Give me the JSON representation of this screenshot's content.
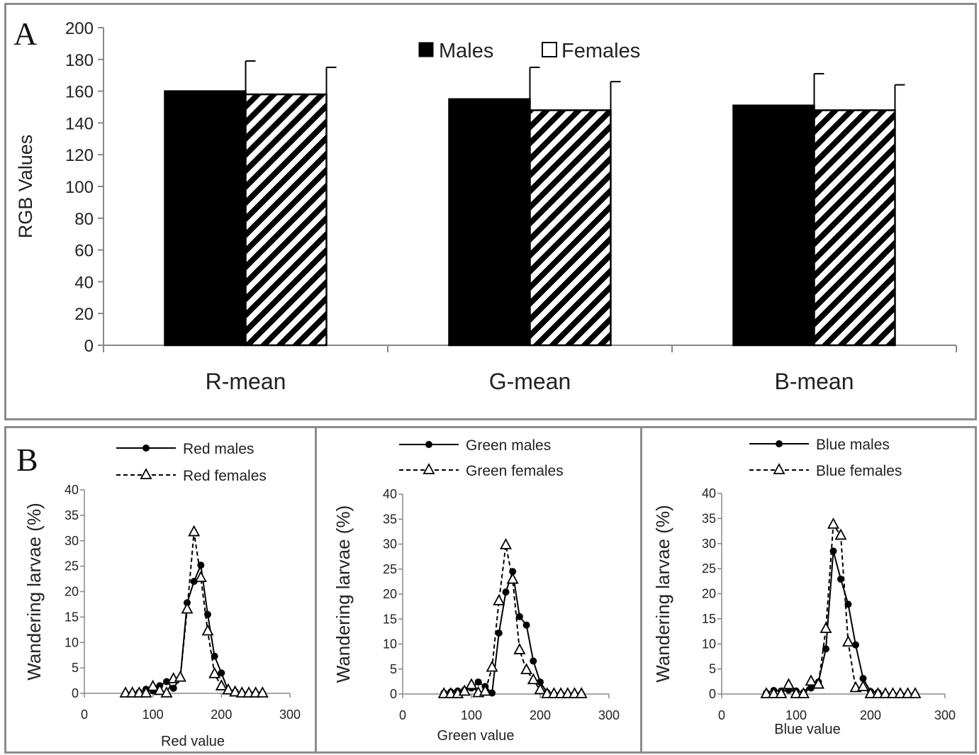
{
  "panel_a": {
    "letter": "A",
    "legend_males": "Males",
    "legend_females": "Females"
  },
  "panel_b": {
    "letter": "B"
  },
  "colors": {
    "males": "#000000",
    "females_fill": "#ffffff",
    "females_hatch": "#000000",
    "axis": "#888888",
    "frame": "#8c8c8c"
  },
  "chart_data": [
    {
      "id": "A",
      "type": "bar",
      "title": "",
      "xlabel": "",
      "ylabel": "RGB Values",
      "categories": [
        "R-mean",
        "G-mean",
        "B-mean"
      ],
      "series": [
        {
          "name": "Males",
          "values": [
            160,
            155,
            151
          ],
          "error": [
            19,
            20,
            20
          ]
        },
        {
          "name": "Females",
          "values": [
            158,
            148,
            148
          ],
          "error": [
            17,
            18,
            16
          ]
        }
      ],
      "ylim": [
        0,
        200
      ],
      "yticks": [
        0,
        20,
        40,
        60,
        80,
        100,
        120,
        140,
        160,
        180,
        200
      ],
      "legend_position": "top-center",
      "grid": false
    },
    {
      "id": "B-red",
      "type": "line",
      "xlabel": "Red value",
      "ylabel": "Wandering larvae (%)",
      "xlim": [
        0,
        300
      ],
      "ylim": [
        0,
        40
      ],
      "xticks": [
        0,
        100,
        200,
        300
      ],
      "yticks": [
        0,
        5,
        10,
        15,
        20,
        25,
        30,
        35,
        40
      ],
      "legend_position": "top-center",
      "grid": false,
      "series": [
        {
          "name": "Red males",
          "style": "solid",
          "marker": "circle",
          "x": [
            60,
            70,
            80,
            90,
            100,
            110,
            120,
            130,
            140,
            150,
            160,
            170,
            180,
            190,
            200,
            210,
            220,
            230,
            240,
            250,
            260
          ],
          "y": [
            0,
            0,
            0.2,
            0.8,
            0.5,
            1.5,
            2.3,
            1.0,
            3.0,
            17.8,
            22.0,
            25.2,
            15.5,
            7.3,
            4.0,
            0.5,
            0.3,
            0,
            0,
            0,
            0
          ]
        },
        {
          "name": "Red females",
          "style": "dashed",
          "marker": "triangle",
          "x": [
            60,
            70,
            80,
            90,
            100,
            110,
            120,
            130,
            140,
            150,
            160,
            170,
            180,
            190,
            200,
            210,
            220,
            230,
            240,
            250,
            260
          ],
          "y": [
            0,
            0,
            0,
            0,
            1.3,
            0.5,
            0,
            2.8,
            3.1,
            16.5,
            31.7,
            22.7,
            12.2,
            3.8,
            1.4,
            0.6,
            0.2,
            0,
            0,
            0,
            0
          ]
        }
      ]
    },
    {
      "id": "B-green",
      "type": "line",
      "xlabel": "Green value",
      "ylabel": "Wandering larvae (%)",
      "xlim": [
        0,
        300
      ],
      "ylim": [
        0,
        40
      ],
      "xticks": [
        0,
        100,
        200,
        300
      ],
      "yticks": [
        0,
        5,
        10,
        15,
        20,
        25,
        30,
        35,
        40
      ],
      "legend_position": "top-center",
      "grid": false,
      "series": [
        {
          "name": "Green males",
          "style": "solid",
          "marker": "circle",
          "x": [
            60,
            70,
            80,
            90,
            100,
            110,
            120,
            130,
            140,
            150,
            160,
            170,
            180,
            190,
            200,
            210,
            220,
            230,
            240,
            250,
            260
          ],
          "y": [
            0.2,
            0.4,
            0.6,
            0.8,
            1.2,
            2.4,
            1.5,
            0.2,
            12.2,
            20.4,
            24.5,
            15.5,
            13.8,
            6.6,
            2.4,
            0.3,
            0,
            0,
            0,
            0,
            0
          ]
        },
        {
          "name": "Green females",
          "style": "dashed",
          "marker": "triangle",
          "x": [
            60,
            70,
            80,
            90,
            100,
            110,
            120,
            130,
            140,
            150,
            160,
            170,
            180,
            190,
            200,
            210,
            220,
            230,
            240,
            250,
            260
          ],
          "y": [
            0,
            0,
            0,
            0.5,
            1.8,
            0.2,
            0.5,
            5.3,
            18.6,
            29.8,
            22.9,
            8.8,
            4.8,
            2.8,
            0.8,
            0,
            0,
            0,
            0,
            0,
            0
          ]
        }
      ]
    },
    {
      "id": "B-blue",
      "type": "line",
      "xlabel": "Blue value",
      "ylabel": "Wandering larvae (%)",
      "xlim": [
        0,
        300
      ],
      "ylim": [
        0,
        40
      ],
      "xticks": [
        0,
        100,
        200,
        300
      ],
      "yticks": [
        0,
        5,
        10,
        15,
        20,
        25,
        30,
        35,
        40
      ],
      "legend_position": "top-center",
      "grid": false,
      "series": [
        {
          "name": "Blue males",
          "style": "solid",
          "marker": "circle",
          "x": [
            60,
            70,
            80,
            90,
            100,
            110,
            120,
            130,
            140,
            150,
            160,
            170,
            180,
            190,
            200,
            210,
            220,
            230,
            240,
            250,
            260
          ],
          "y": [
            0.2,
            0.7,
            0.6,
            0.8,
            0.6,
            0.3,
            1.2,
            2.4,
            9.0,
            28.5,
            22.9,
            17.9,
            9.8,
            3.1,
            0.5,
            0.3,
            0,
            0,
            0,
            0,
            0
          ]
        },
        {
          "name": "Blue females",
          "style": "dashed",
          "marker": "triangle",
          "x": [
            60,
            70,
            80,
            90,
            100,
            110,
            120,
            130,
            140,
            150,
            160,
            170,
            180,
            190,
            200,
            210,
            220,
            230,
            240,
            250,
            260
          ],
          "y": [
            0,
            0,
            0,
            1.8,
            0,
            0,
            2.5,
            1.9,
            13.0,
            33.8,
            31.6,
            10.3,
            1.2,
            1.4,
            0,
            0,
            0,
            0,
            0,
            0,
            0
          ]
        }
      ]
    }
  ]
}
